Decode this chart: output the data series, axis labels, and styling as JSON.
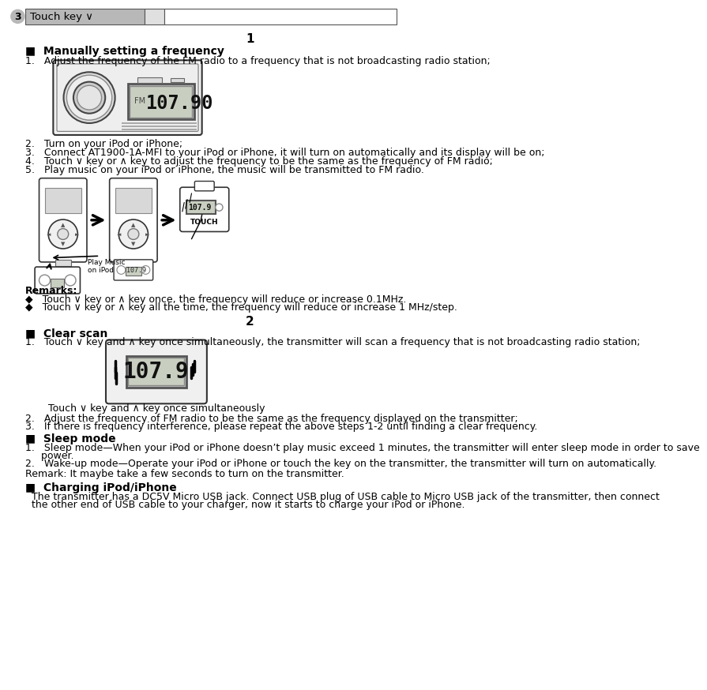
{
  "bg_color": "#ffffff",
  "header_bg": "#b8b8b8",
  "header_text": "Touch key ∨",
  "header_circle_num": "3",
  "section1_num": "1",
  "section2_num": "2",
  "manually_title": "■  Manually setting a frequency",
  "manually_steps": [
    "1.   Adjust the frequency of the FM radio to a frequency that is not broadcasting radio station;",
    "2.   Turn on your iPod or iPhone;",
    "3.   Connect AT1900-1A-MFI to your iPod or iPhone, it will turn on automatically and its display will be on;",
    "4.   Touch ∨ key or ∧ key to adjust the frequency to be the same as the frequency of FM radio;",
    "5.   Play music on your iPod or iPhone, the music will be transmitted to FM radio."
  ],
  "remarks_title": "Remarks",
  "remarks_bullets": [
    "◆   Touch ∨ key or ∧ key once, the frequency will reduce or increase 0.1MHz.",
    "◆   Touch ∨ key or ∧ key all the time, the frequency will reduce or increase 1 MHz/step."
  ],
  "clearscan_title": "■  Clear scan",
  "clearscan_steps": [
    "1.   Touch ∨ key and ∧ key once simultaneously, the transmitter will scan a frequency that is not broadcasting radio station;",
    "2.   Adjust the frequency of FM radio to be the same as the frequency displayed on the transmitter;",
    "3.   If there is frequency interference, please repeat the above steps 1-2 until finding a clear frequency."
  ],
  "clearscan_caption": "Touch ∨ key and ∧ key once simultaneously",
  "sleep_title": "■  Sleep mode",
  "sleep_steps": [
    "1.   Sleep mode—When your iPod or iPhone doesn’t play music exceed 1 minutes, the transmitter will enter sleep mode in order to save power.",
    "2.   Wake-up mode—Operate your iPod or iPhone or touch the key on the transmitter, the transmitter will turn on automatically."
  ],
  "remark_single": "Remark: It maybe take a few seconds to turn on the transmitter.",
  "charging_title": "■  Charging iPod/iPhone",
  "charging_text": "  The transmitter has a DC5V Micro USB jack. Connect USB plug of USB cable to Micro USB jack of the transmitter, then connect\n  the other end of USB cable to your charger, now it starts to charge your iPod or iPhone."
}
